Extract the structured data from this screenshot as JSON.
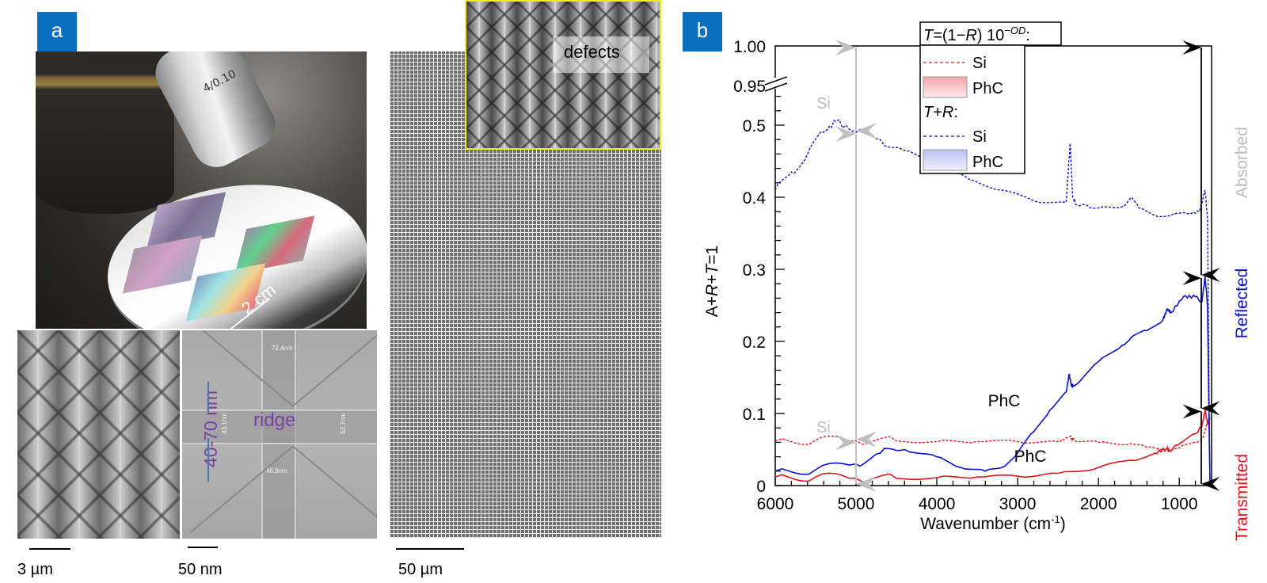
{
  "panel_a": {
    "badge": "a",
    "photo_label": "2 cm",
    "objective_marking": "4/0.10",
    "ridge_label": "ridge",
    "ridge_range_label": "40-70 nm",
    "measurements": [
      "72.4nm",
      "43.1nm",
      "62.7nm",
      "46.9nm"
    ],
    "inset_label": "defects",
    "scale_bars": [
      "3 µm",
      "50 nm",
      "50 µm"
    ],
    "colors": {
      "badge": "#0b6fc0",
      "annotation": "#7b3fa6",
      "inset_border": "#f3ee1a",
      "arrow": "#3a79c4"
    }
  },
  "panel_b": {
    "badge": "b",
    "right_labels": {
      "absorbed": "Absorbed",
      "reflected": "Reflected",
      "transmitted": "Transmitted"
    },
    "annotations": {
      "si_upper": "Si",
      "si_lower": "Si",
      "phc_reflect": "PhC",
      "phc_transmit": "PhC"
    },
    "legend": {
      "header1": "T=(1−R) 10",
      "header1_sup": "−OD",
      "header1_tail": ":",
      "items1": [
        "Si",
        "PhC"
      ],
      "header2": "T+R:",
      "items2": [
        "Si",
        "PhC"
      ]
    },
    "colors": {
      "transmit": "#e0141c",
      "reflect": "#0a12c8",
      "absorbed": "#bdbdbd",
      "arrow_black": "#000000",
      "arrow_grey": "#bfbfbf"
    }
  },
  "chart_data": {
    "type": "line",
    "title": "",
    "xlabel": "Wavenumber (cm-1)",
    "ylabel": "A+R+T=1",
    "xlim": [
      6000,
      600
    ],
    "x_reversed": true,
    "ylim": [
      0,
      1.0
    ],
    "y_axis_break": [
      0.55,
      0.95
    ],
    "xticks": [
      6000,
      5000,
      4000,
      3000,
      2000,
      1000
    ],
    "yticks": [
      0,
      0.1,
      0.2,
      0.3,
      0.4,
      0.5,
      0.95,
      1.0
    ],
    "ytick_labels": [
      "0",
      "0.1",
      "0.2",
      "0.3",
      "0.4",
      "0.5",
      "0.95",
      "1.00"
    ],
    "legend_position": "top-center",
    "series": [
      {
        "name": "T Si",
        "group": "T=(1-R)10^-OD",
        "style": "dashed",
        "color": "#e0141c",
        "x": [
          6000,
          5500,
          5000,
          4500,
          4000,
          3500,
          3000,
          2500,
          2350,
          2300,
          2000,
          1600,
          1400,
          1200,
          1100,
          1000,
          800,
          700,
          650,
          620
        ],
        "y": [
          0.062,
          0.063,
          0.062,
          0.062,
          0.061,
          0.061,
          0.061,
          0.061,
          0.068,
          0.062,
          0.06,
          0.058,
          0.053,
          0.05,
          0.049,
          0.052,
          0.06,
          0.068,
          0.09,
          0.07
        ]
      },
      {
        "name": "T PhC",
        "group": "T=(1-R)10^-OD",
        "style": "solid",
        "color": "#e0141c",
        "x": [
          6000,
          5500,
          5000,
          4500,
          4000,
          3500,
          3000,
          2500,
          2000,
          1600,
          1300,
          1150,
          1120,
          1000,
          800,
          720,
          680,
          650,
          620
        ],
        "y": [
          0.012,
          0.012,
          0.01,
          0.01,
          0.011,
          0.012,
          0.013,
          0.017,
          0.025,
          0.035,
          0.045,
          0.052,
          0.048,
          0.058,
          0.072,
          0.082,
          0.105,
          0.085,
          0.095
        ]
      },
      {
        "name": "T+R Si",
        "group": "T+R",
        "style": "dashed",
        "color": "#0a12c8",
        "x": [
          6000,
          5800,
          5600,
          5400,
          5250,
          5000,
          4700,
          4400,
          4000,
          3600,
          3200,
          2800,
          2400,
          2350,
          2320,
          2280,
          2000,
          1700,
          1600,
          1500,
          1300,
          1100,
          900,
          750,
          680,
          650,
          620
        ],
        "y": [
          0.41,
          0.435,
          0.46,
          0.49,
          0.505,
          0.49,
          0.48,
          0.465,
          0.445,
          0.425,
          0.41,
          0.395,
          0.393,
          0.475,
          0.4,
          0.39,
          0.385,
          0.387,
          0.4,
          0.385,
          0.375,
          0.375,
          0.377,
          0.38,
          0.41,
          0.37,
          0.0
        ]
      },
      {
        "name": "T+R PhC",
        "group": "T+R",
        "style": "solid",
        "color": "#0a12c8",
        "x": [
          6000,
          5500,
          5000,
          4700,
          4400,
          4000,
          3700,
          3400,
          3200,
          3000,
          2800,
          2600,
          2400,
          2360,
          2340,
          2300,
          2000,
          1700,
          1600,
          1400,
          1200,
          1150,
          1100,
          950,
          800,
          720,
          680,
          650,
          620
        ],
        "y": [
          0.02,
          0.022,
          0.03,
          0.045,
          0.05,
          0.04,
          0.025,
          0.02,
          0.025,
          0.045,
          0.075,
          0.105,
          0.13,
          0.155,
          0.14,
          0.138,
          0.172,
          0.195,
          0.205,
          0.215,
          0.23,
          0.245,
          0.24,
          0.262,
          0.262,
          0.255,
          0.29,
          0.25,
          0.0
        ]
      }
    ],
    "arrows": [
      {
        "x": 5000,
        "from": 1.0,
        "to": 0.49,
        "color": "grey",
        "label": "Si"
      },
      {
        "x": 5000,
        "from": 0.49,
        "to": 0.062,
        "color": "grey"
      },
      {
        "x": 5000,
        "from": 0.062,
        "to": 0.0,
        "color": "grey",
        "label": "Si"
      },
      {
        "x": 700,
        "from": 1.0,
        "to": 0.29,
        "color": "black"
      },
      {
        "x": 700,
        "from": 0.29,
        "to": 0.105,
        "color": "black"
      },
      {
        "x": 700,
        "from": 0.105,
        "to": 0.0,
        "color": "black"
      }
    ]
  }
}
